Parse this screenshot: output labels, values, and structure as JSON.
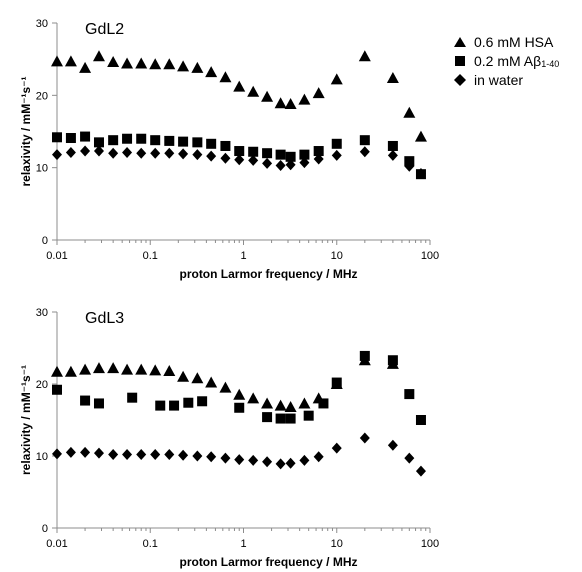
{
  "legend": {
    "items": [
      {
        "label": "0.6 mM HSA",
        "symbol": "triangle"
      },
      {
        "label": "0.2 mM Aβ",
        "subscript": "1-40",
        "symbol": "square"
      },
      {
        "label": "in water",
        "symbol": "diamond"
      }
    ]
  },
  "chart_data": [
    {
      "type": "scatter",
      "title": "GdL2",
      "xlabel": "proton Larmor frequency / MHz",
      "ylabel": "relaxivity / mM⁻¹s⁻¹",
      "xscale": "log",
      "xlim": [
        0.01,
        100
      ],
      "ylim": [
        0,
        30
      ],
      "xticks": [
        "0.01",
        "0.1",
        "1",
        "10",
        "100"
      ],
      "yticks": [
        "0",
        "10",
        "20",
        "30"
      ],
      "grid": false,
      "legend_position": "right",
      "series": [
        {
          "name": "0.6 mM HSA",
          "marker": "triangle",
          "x": [
            0.01,
            0.0141,
            0.02,
            0.0282,
            0.04,
            0.0564,
            0.08,
            0.113,
            0.16,
            0.225,
            0.32,
            0.45,
            0.64,
            0.9,
            1.27,
            1.79,
            2.5,
            3.2,
            4.5,
            6.4,
            10,
            20,
            40,
            60,
            80
          ],
          "y": [
            24.7,
            24.7,
            23.8,
            25.4,
            24.6,
            24.4,
            24.4,
            24.3,
            24.3,
            24.0,
            23.8,
            23.2,
            22.5,
            21.2,
            20.5,
            19.8,
            18.9,
            18.8,
            19.4,
            20.3,
            22.2,
            25.4,
            22.4,
            17.6,
            14.3
          ]
        },
        {
          "name": "0.2 mM Aβ1-40",
          "marker": "square",
          "x": [
            0.01,
            0.0141,
            0.02,
            0.0282,
            0.04,
            0.0564,
            0.08,
            0.113,
            0.16,
            0.225,
            0.32,
            0.45,
            0.64,
            0.9,
            1.27,
            1.79,
            2.5,
            3.2,
            4.5,
            6.4,
            10,
            20,
            40,
            60,
            80
          ],
          "y": [
            14.2,
            14.1,
            14.3,
            13.5,
            13.8,
            14.0,
            14.0,
            13.8,
            13.7,
            13.6,
            13.5,
            13.3,
            13.0,
            12.3,
            12.2,
            12.0,
            11.8,
            11.5,
            11.8,
            12.3,
            13.3,
            13.8,
            13.0,
            10.9,
            9.1
          ]
        },
        {
          "name": "in water",
          "marker": "diamond",
          "x": [
            0.01,
            0.0141,
            0.02,
            0.0282,
            0.04,
            0.0564,
            0.08,
            0.113,
            0.16,
            0.225,
            0.32,
            0.45,
            0.64,
            0.9,
            1.27,
            1.79,
            2.5,
            3.2,
            4.5,
            6.4,
            10,
            20,
            40,
            60,
            80
          ],
          "y": [
            11.8,
            12.1,
            12.3,
            12.3,
            12.0,
            12.1,
            12.0,
            12.0,
            12.0,
            11.9,
            11.8,
            11.6,
            11.3,
            11.1,
            11.0,
            10.6,
            10.3,
            10.4,
            10.7,
            11.2,
            11.7,
            12.2,
            11.7,
            10.2,
            9.2
          ]
        }
      ]
    },
    {
      "type": "scatter",
      "title": "GdL3",
      "xlabel": "proton Larmor frequency / MHz",
      "ylabel": "relaxivity / mM⁻¹s⁻¹",
      "xscale": "log",
      "xlim": [
        0.01,
        100
      ],
      "ylim": [
        0,
        30
      ],
      "xticks": [
        "0.01",
        "0.1",
        "1",
        "10",
        "100"
      ],
      "yticks": [
        "0",
        "10",
        "20",
        "30"
      ],
      "grid": false,
      "series": [
        {
          "name": "0.6 mM HSA",
          "marker": "triangle",
          "x": [
            0.01,
            0.0141,
            0.02,
            0.0282,
            0.04,
            0.0564,
            0.08,
            0.113,
            0.16,
            0.225,
            0.32,
            0.45,
            0.64,
            0.9,
            1.27,
            1.79,
            2.5,
            3.2,
            4.5,
            6.4,
            10,
            20,
            40
          ],
          "y": [
            21.7,
            21.7,
            22.0,
            22.2,
            22.2,
            22.0,
            22.0,
            21.9,
            21.8,
            21.0,
            20.8,
            20.2,
            19.5,
            18.5,
            18.0,
            17.3,
            17.0,
            16.8,
            17.3,
            18.0,
            20.0,
            23.3,
            22.8
          ]
        },
        {
          "name": "0.2 mM Aβ1-40",
          "marker": "square",
          "x": [
            0.01,
            0.02,
            0.0282,
            0.064,
            0.128,
            0.18,
            0.256,
            0.36,
            0.9,
            1.79,
            2.5,
            3.2,
            5,
            7.2,
            10,
            20,
            40,
            60,
            80
          ],
          "y": [
            19.2,
            17.7,
            17.3,
            18.1,
            17.0,
            17.0,
            17.4,
            17.6,
            16.7,
            15.4,
            15.2,
            15.2,
            15.6,
            17.3,
            20.2,
            23.9,
            23.3,
            18.6,
            15.0
          ]
        },
        {
          "name": "in water",
          "marker": "diamond",
          "x": [
            0.01,
            0.0141,
            0.02,
            0.0282,
            0.04,
            0.0564,
            0.08,
            0.113,
            0.16,
            0.225,
            0.32,
            0.45,
            0.64,
            0.9,
            1.27,
            1.79,
            2.5,
            3.2,
            4.5,
            6.4,
            10,
            20,
            40,
            60,
            80
          ],
          "y": [
            10.3,
            10.5,
            10.5,
            10.4,
            10.2,
            10.2,
            10.2,
            10.2,
            10.2,
            10.1,
            10.0,
            9.9,
            9.7,
            9.5,
            9.4,
            9.2,
            8.9,
            9.0,
            9.4,
            9.9,
            11.1,
            12.5,
            11.5,
            9.7,
            7.9
          ]
        }
      ]
    }
  ]
}
